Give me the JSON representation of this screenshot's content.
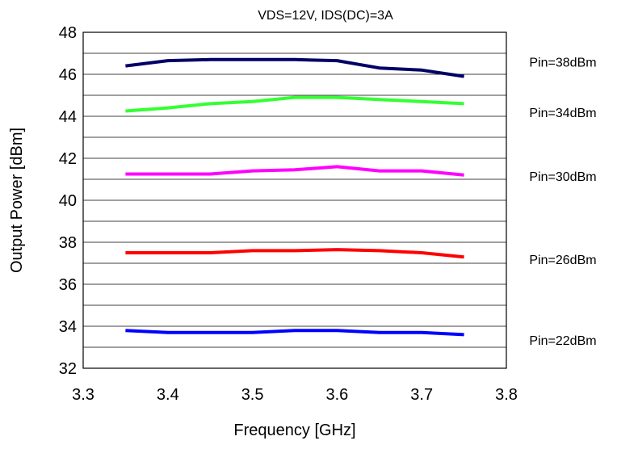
{
  "chart_data": {
    "type": "line",
    "title": "VDS=12V, IDS(DC)=3A",
    "xlabel": "Frequency [GHz]",
    "ylabel": "Output Power [dBm]",
    "xlim": [
      3.3,
      3.8
    ],
    "ylim": [
      32,
      48
    ],
    "x_ticks": [
      "3.3",
      "3.4",
      "3.5",
      "3.6",
      "3.7",
      "3.8"
    ],
    "y_ticks": [
      "32",
      "34",
      "36",
      "38",
      "40",
      "42",
      "44",
      "46",
      "48"
    ],
    "grid": "horizontal",
    "legend_placement": "right of plot, label next to each series",
    "x": [
      3.35,
      3.4,
      3.45,
      3.5,
      3.55,
      3.6,
      3.65,
      3.7,
      3.75
    ],
    "series": [
      {
        "name": "Pin=38dBm",
        "color": "#000066",
        "values": [
          46.4,
          46.65,
          46.7,
          46.7,
          46.7,
          46.65,
          46.3,
          46.2,
          45.9
        ],
        "label_y": 46.6
      },
      {
        "name": "Pin=34dBm",
        "color": "#33ff33",
        "values": [
          44.25,
          44.4,
          44.6,
          44.7,
          44.9,
          44.9,
          44.8,
          44.7,
          44.6
        ],
        "label_y": 44.2
      },
      {
        "name": "Pin=30dBm",
        "color": "#ff00ff",
        "values": [
          41.25,
          41.25,
          41.25,
          41.4,
          41.45,
          41.6,
          41.4,
          41.4,
          41.2
        ],
        "label_y": 41.15
      },
      {
        "name": "Pin=26dBm",
        "color": "#ff0000",
        "values": [
          37.5,
          37.5,
          37.5,
          37.6,
          37.6,
          37.65,
          37.6,
          37.5,
          37.3
        ],
        "label_y": 37.2
      },
      {
        "name": "Pin=22dBm",
        "color": "#0000ff",
        "values": [
          33.8,
          33.7,
          33.7,
          33.7,
          33.8,
          33.8,
          33.7,
          33.7,
          33.6
        ],
        "label_y": 33.35
      }
    ]
  }
}
